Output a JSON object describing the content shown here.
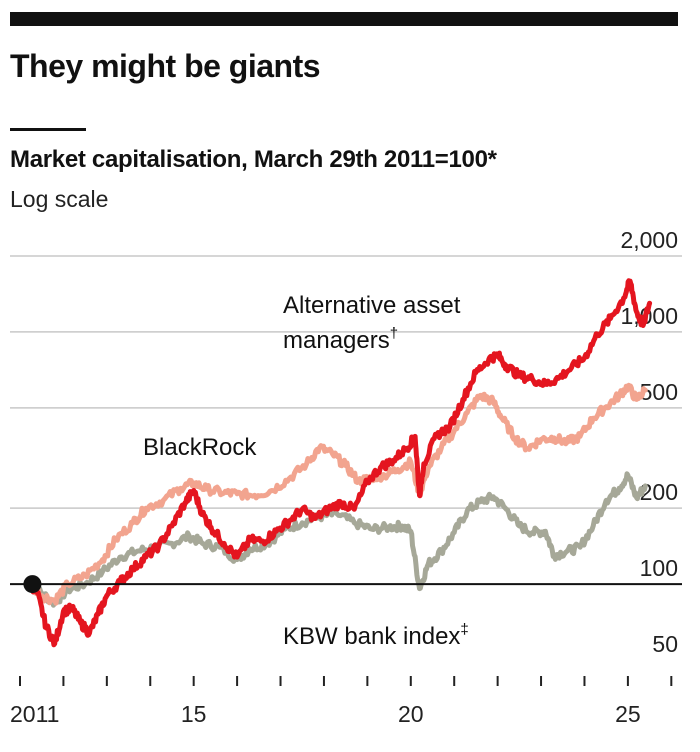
{
  "title": "They might be giants",
  "subtitle": "Market capitalisation, March 29th 2011=100*",
  "subnote": "Log scale",
  "colors": {
    "alternative": "#e4151f",
    "blackrock": "#f2a48f",
    "kbw": "#a6a898",
    "grid": "#c8c8c8",
    "baseline": "#111111"
  },
  "chart_data": {
    "type": "line",
    "yscale": "log",
    "ylim": [
      50,
      2000
    ],
    "xlim": [
      2011,
      2026.2
    ],
    "yticks": [
      {
        "value": 2000,
        "label": "2,000"
      },
      {
        "value": 1000,
        "label": "1,000"
      },
      {
        "value": 500,
        "label": "500"
      },
      {
        "value": 200,
        "label": "200"
      },
      {
        "value": 100,
        "label": "100"
      },
      {
        "value": 50,
        "label": "50"
      }
    ],
    "xticks": [
      {
        "value": 2011,
        "label": "2011"
      },
      {
        "value": 2015,
        "label": "15"
      },
      {
        "value": 2020,
        "label": "20"
      },
      {
        "value": 2025,
        "label": "25"
      }
    ],
    "start_point": {
      "x": 2011.24,
      "y": 100
    },
    "series": [
      {
        "name": "Alternative asset managers",
        "label_main": "Alternative asset",
        "label_cont": "managers",
        "label_mark": "†",
        "color_key": "alternative",
        "points": [
          [
            2011.24,
            100
          ],
          [
            2011.4,
            92
          ],
          [
            2011.6,
            68
          ],
          [
            2011.8,
            58
          ],
          [
            2012.0,
            78
          ],
          [
            2012.2,
            80
          ],
          [
            2012.4,
            70
          ],
          [
            2012.6,
            64
          ],
          [
            2012.8,
            76
          ],
          [
            2013.0,
            90
          ],
          [
            2013.3,
            102
          ],
          [
            2013.6,
            115
          ],
          [
            2013.9,
            128
          ],
          [
            2014.2,
            142
          ],
          [
            2014.5,
            170
          ],
          [
            2014.8,
            210
          ],
          [
            2015.0,
            235
          ],
          [
            2015.2,
            190
          ],
          [
            2015.4,
            168
          ],
          [
            2015.7,
            145
          ],
          [
            2016.0,
            128
          ],
          [
            2016.3,
            150
          ],
          [
            2016.6,
            148
          ],
          [
            2016.9,
            162
          ],
          [
            2017.2,
            178
          ],
          [
            2017.5,
            198
          ],
          [
            2017.8,
            182
          ],
          [
            2018.1,
            198
          ],
          [
            2018.4,
            210
          ],
          [
            2018.7,
            198
          ],
          [
            2019.0,
            255
          ],
          [
            2019.3,
            290
          ],
          [
            2019.6,
            310
          ],
          [
            2019.9,
            345
          ],
          [
            2020.1,
            385
          ],
          [
            2020.2,
            225
          ],
          [
            2020.3,
            300
          ],
          [
            2020.6,
            390
          ],
          [
            2020.9,
            420
          ],
          [
            2021.2,
            540
          ],
          [
            2021.5,
            690
          ],
          [
            2021.8,
            780
          ],
          [
            2022.0,
            810
          ],
          [
            2022.2,
            735
          ],
          [
            2022.5,
            670
          ],
          [
            2022.8,
            650
          ],
          [
            2023.1,
            620
          ],
          [
            2023.4,
            655
          ],
          [
            2023.7,
            720
          ],
          [
            2024.0,
            790
          ],
          [
            2024.3,
            980
          ],
          [
            2024.6,
            1130
          ],
          [
            2024.9,
            1360
          ],
          [
            2025.05,
            1590
          ],
          [
            2025.2,
            1200
          ],
          [
            2025.35,
            1060
          ],
          [
            2025.5,
            1300
          ]
        ]
      },
      {
        "name": "BlackRock",
        "label_main": "BlackRock",
        "color_key": "blackrock",
        "points": [
          [
            2011.24,
            100
          ],
          [
            2011.5,
            90
          ],
          [
            2011.8,
            86
          ],
          [
            2012.1,
            100
          ],
          [
            2012.5,
            108
          ],
          [
            2012.9,
            125
          ],
          [
            2013.2,
            150
          ],
          [
            2013.6,
            175
          ],
          [
            2013.9,
            200
          ],
          [
            2014.3,
            215
          ],
          [
            2014.7,
            240
          ],
          [
            2015.0,
            252
          ],
          [
            2015.3,
            238
          ],
          [
            2015.7,
            230
          ],
          [
            2016.0,
            228
          ],
          [
            2016.4,
            225
          ],
          [
            2016.8,
            235
          ],
          [
            2017.2,
            262
          ],
          [
            2017.6,
            300
          ],
          [
            2017.9,
            348
          ],
          [
            2018.2,
            328
          ],
          [
            2018.5,
            295
          ],
          [
            2018.8,
            255
          ],
          [
            2019.1,
            265
          ],
          [
            2019.4,
            270
          ],
          [
            2019.7,
            285
          ],
          [
            2020.0,
            305
          ],
          [
            2020.2,
            228
          ],
          [
            2020.4,
            288
          ],
          [
            2020.7,
            345
          ],
          [
            2021.0,
            405
          ],
          [
            2021.3,
            478
          ],
          [
            2021.6,
            560
          ],
          [
            2021.9,
            530
          ],
          [
            2022.1,
            455
          ],
          [
            2022.4,
            380
          ],
          [
            2022.7,
            345
          ],
          [
            2023.0,
            375
          ],
          [
            2023.3,
            380
          ],
          [
            2023.6,
            365
          ],
          [
            2023.9,
            385
          ],
          [
            2024.2,
            455
          ],
          [
            2024.5,
            505
          ],
          [
            2024.8,
            560
          ],
          [
            2025.0,
            610
          ],
          [
            2025.2,
            540
          ],
          [
            2025.4,
            588
          ]
        ]
      },
      {
        "name": "KBW bank index",
        "label_main": "KBW bank index",
        "label_mark": "‡",
        "color_key": "kbw",
        "points": [
          [
            2011.24,
            100
          ],
          [
            2011.5,
            92
          ],
          [
            2011.8,
            84
          ],
          [
            2012.1,
            95
          ],
          [
            2012.5,
            100
          ],
          [
            2012.9,
            112
          ],
          [
            2013.3,
            128
          ],
          [
            2013.7,
            135
          ],
          [
            2014.1,
            140
          ],
          [
            2014.5,
            145
          ],
          [
            2014.9,
            155
          ],
          [
            2015.2,
            145
          ],
          [
            2015.6,
            140
          ],
          [
            2016.0,
            125
          ],
          [
            2016.3,
            138
          ],
          [
            2016.7,
            145
          ],
          [
            2017.1,
            165
          ],
          [
            2017.5,
            175
          ],
          [
            2017.9,
            185
          ],
          [
            2018.3,
            190
          ],
          [
            2018.7,
            175
          ],
          [
            2019.1,
            165
          ],
          [
            2019.5,
            168
          ],
          [
            2019.8,
            170
          ],
          [
            2020.0,
            162
          ],
          [
            2020.2,
            96
          ],
          [
            2020.4,
            120
          ],
          [
            2020.7,
            135
          ],
          [
            2021.0,
            160
          ],
          [
            2021.3,
            195
          ],
          [
            2021.6,
            212
          ],
          [
            2021.9,
            222
          ],
          [
            2022.2,
            198
          ],
          [
            2022.5,
            170
          ],
          [
            2022.8,
            160
          ],
          [
            2023.1,
            162
          ],
          [
            2023.3,
            130
          ],
          [
            2023.6,
            135
          ],
          [
            2023.9,
            140
          ],
          [
            2024.2,
            170
          ],
          [
            2024.5,
            215
          ],
          [
            2024.8,
            240
          ],
          [
            2025.0,
            270
          ],
          [
            2025.2,
            220
          ],
          [
            2025.4,
            245
          ]
        ]
      }
    ]
  }
}
